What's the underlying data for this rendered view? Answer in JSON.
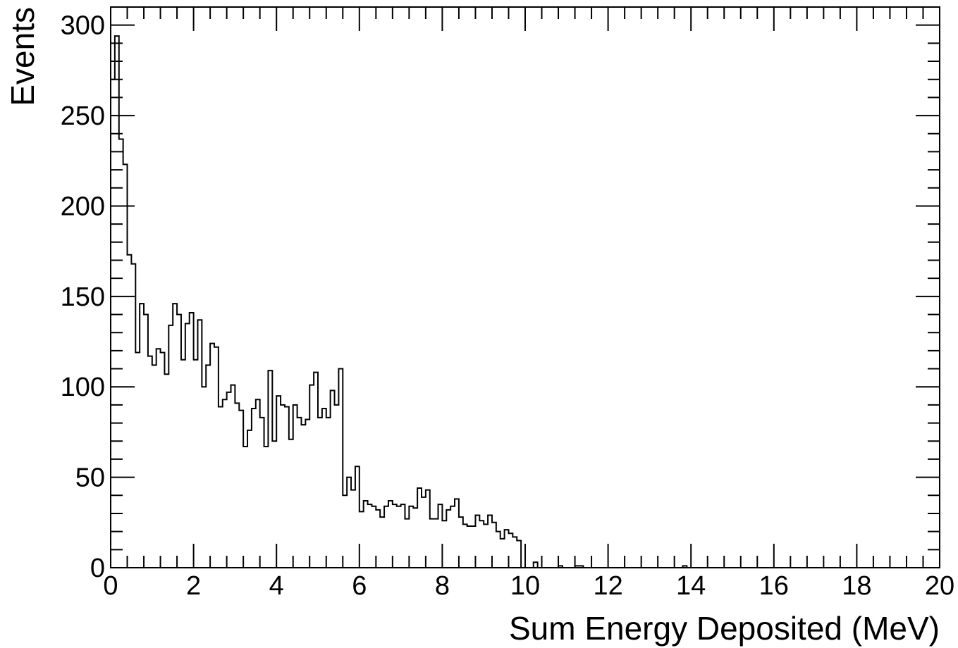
{
  "chart_data": {
    "type": "histogram",
    "title": "",
    "xlabel": "Sum Energy Deposited (MeV)",
    "ylabel": "Events",
    "xlim": [
      0,
      20
    ],
    "ylim": [
      0,
      310
    ],
    "x_ticks": [
      0,
      2,
      4,
      6,
      8,
      10,
      12,
      14,
      16,
      18,
      20
    ],
    "x_tick_labels": [
      "0",
      "2",
      "4",
      "6",
      "8",
      "10",
      "12",
      "14",
      "16",
      "18",
      "20"
    ],
    "y_ticks": [
      0,
      50,
      100,
      150,
      200,
      250,
      300
    ],
    "y_tick_labels": [
      "0",
      "50",
      "100",
      "150",
      "200",
      "250",
      "300"
    ],
    "bin_width": 0.1,
    "grid": false,
    "legend": false,
    "series": [
      {
        "values": [
          270,
          294,
          237,
          223,
          173,
          168,
          119,
          146,
          140,
          117,
          112,
          121,
          119,
          107,
          134,
          146,
          140,
          115,
          135,
          141,
          115,
          137,
          100,
          112,
          124,
          122,
          89,
          93,
          97,
          101,
          91,
          87,
          67,
          76,
          88,
          93,
          83,
          67,
          109,
          70,
          95,
          90,
          89,
          71,
          90,
          83,
          79,
          82,
          101,
          108,
          83,
          88,
          83,
          98,
          90,
          110,
          40,
          50,
          43,
          56,
          31,
          37,
          35,
          34,
          32,
          28,
          34,
          37,
          35,
          34,
          35,
          27,
          34,
          33,
          44,
          39,
          43,
          27,
          27,
          35,
          26,
          32,
          34,
          38,
          28,
          24,
          23,
          23,
          29,
          26,
          24,
          29,
          25,
          20,
          16,
          21,
          19,
          17,
          15,
          0,
          0,
          0,
          3,
          0,
          0,
          0,
          0,
          0,
          1,
          0,
          0,
          0,
          1,
          1,
          0,
          0,
          0,
          0,
          0,
          0,
          0,
          0,
          0,
          0,
          0,
          0,
          0,
          0,
          0,
          0,
          0,
          0,
          0,
          0,
          0,
          0,
          0,
          0,
          1,
          0,
          0,
          0,
          0,
          0,
          0,
          0,
          0,
          0,
          0,
          0,
          0,
          0,
          0,
          0,
          0,
          0,
          0,
          0,
          0,
          0,
          0,
          0,
          0,
          0,
          0,
          0,
          0,
          0,
          0,
          0,
          0,
          0,
          0,
          0,
          0,
          0,
          0,
          0,
          0,
          0,
          0,
          0,
          0,
          0,
          0,
          0,
          0,
          0,
          0,
          0,
          0,
          0,
          0,
          0,
          0,
          0,
          0,
          0,
          0,
          0
        ]
      }
    ]
  }
}
